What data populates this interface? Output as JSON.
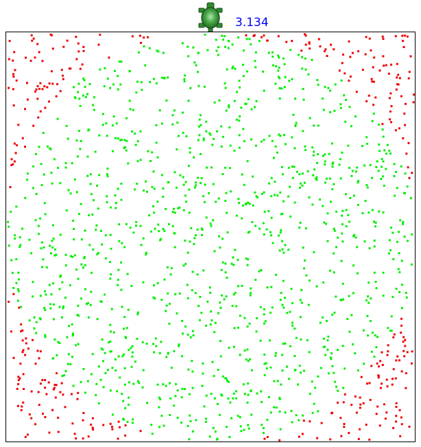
{
  "estimate": {
    "value": "3.134",
    "color": "#0000ff"
  },
  "turtle": {
    "icon": "turtle-icon",
    "body_color": "#2e8b2e",
    "outline_color": "#1a4d1a"
  },
  "simulation": {
    "description_type": "monte-carlo-pi",
    "inside_color": "#00ee00",
    "outside_color": "#ee0000",
    "background_color": "#ffffff",
    "border_color": "#000000",
    "dot_count_shown": 1600,
    "pi_estimate_value": 3.134
  }
}
